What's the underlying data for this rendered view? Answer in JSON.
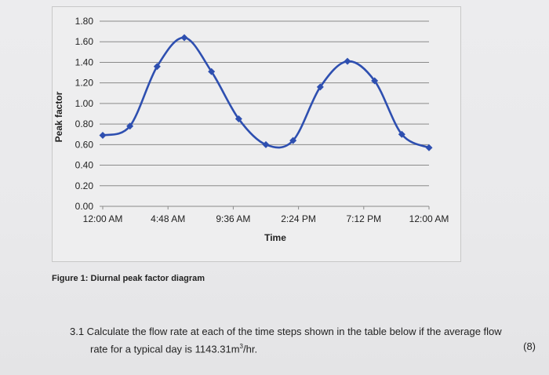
{
  "figure_caption": "Figure 1: Diurnal peak factor diagram",
  "question": {
    "line1": "3.1 Calculate the flow rate at each of the time steps shown in the table below if the average flow",
    "line2_prefix": "rate for a typical day is 1143.31m",
    "line2_sup": "3",
    "line2_suffix": "/hr.",
    "marks": "(8)"
  },
  "colors": {
    "series": "#2e4fb0",
    "grid": "#8a8a8a"
  },
  "chart_data": {
    "type": "line",
    "title": "",
    "xlabel": "Time",
    "ylabel": "Peak factor",
    "ylim": [
      0,
      1.8
    ],
    "y_ticks": [
      "0.00",
      "0.20",
      "0.40",
      "0.60",
      "0.80",
      "1.00",
      "1.20",
      "1.40",
      "1.60",
      "1.80"
    ],
    "x_tick_labels": [
      "12:00 AM",
      "4:48 AM",
      "9:36 AM",
      "2:24 PM",
      "7:12 PM",
      "12:00 AM"
    ],
    "x_hours": [
      0,
      2,
      4,
      6,
      8,
      10,
      12,
      14,
      16,
      18,
      20,
      22,
      24
    ],
    "values": [
      0.69,
      0.78,
      1.36,
      1.64,
      1.31,
      0.85,
      0.6,
      0.64,
      1.16,
      1.41,
      1.22,
      0.7,
      0.57
    ],
    "grid": true,
    "markers": "diamond",
    "legend": "none"
  }
}
